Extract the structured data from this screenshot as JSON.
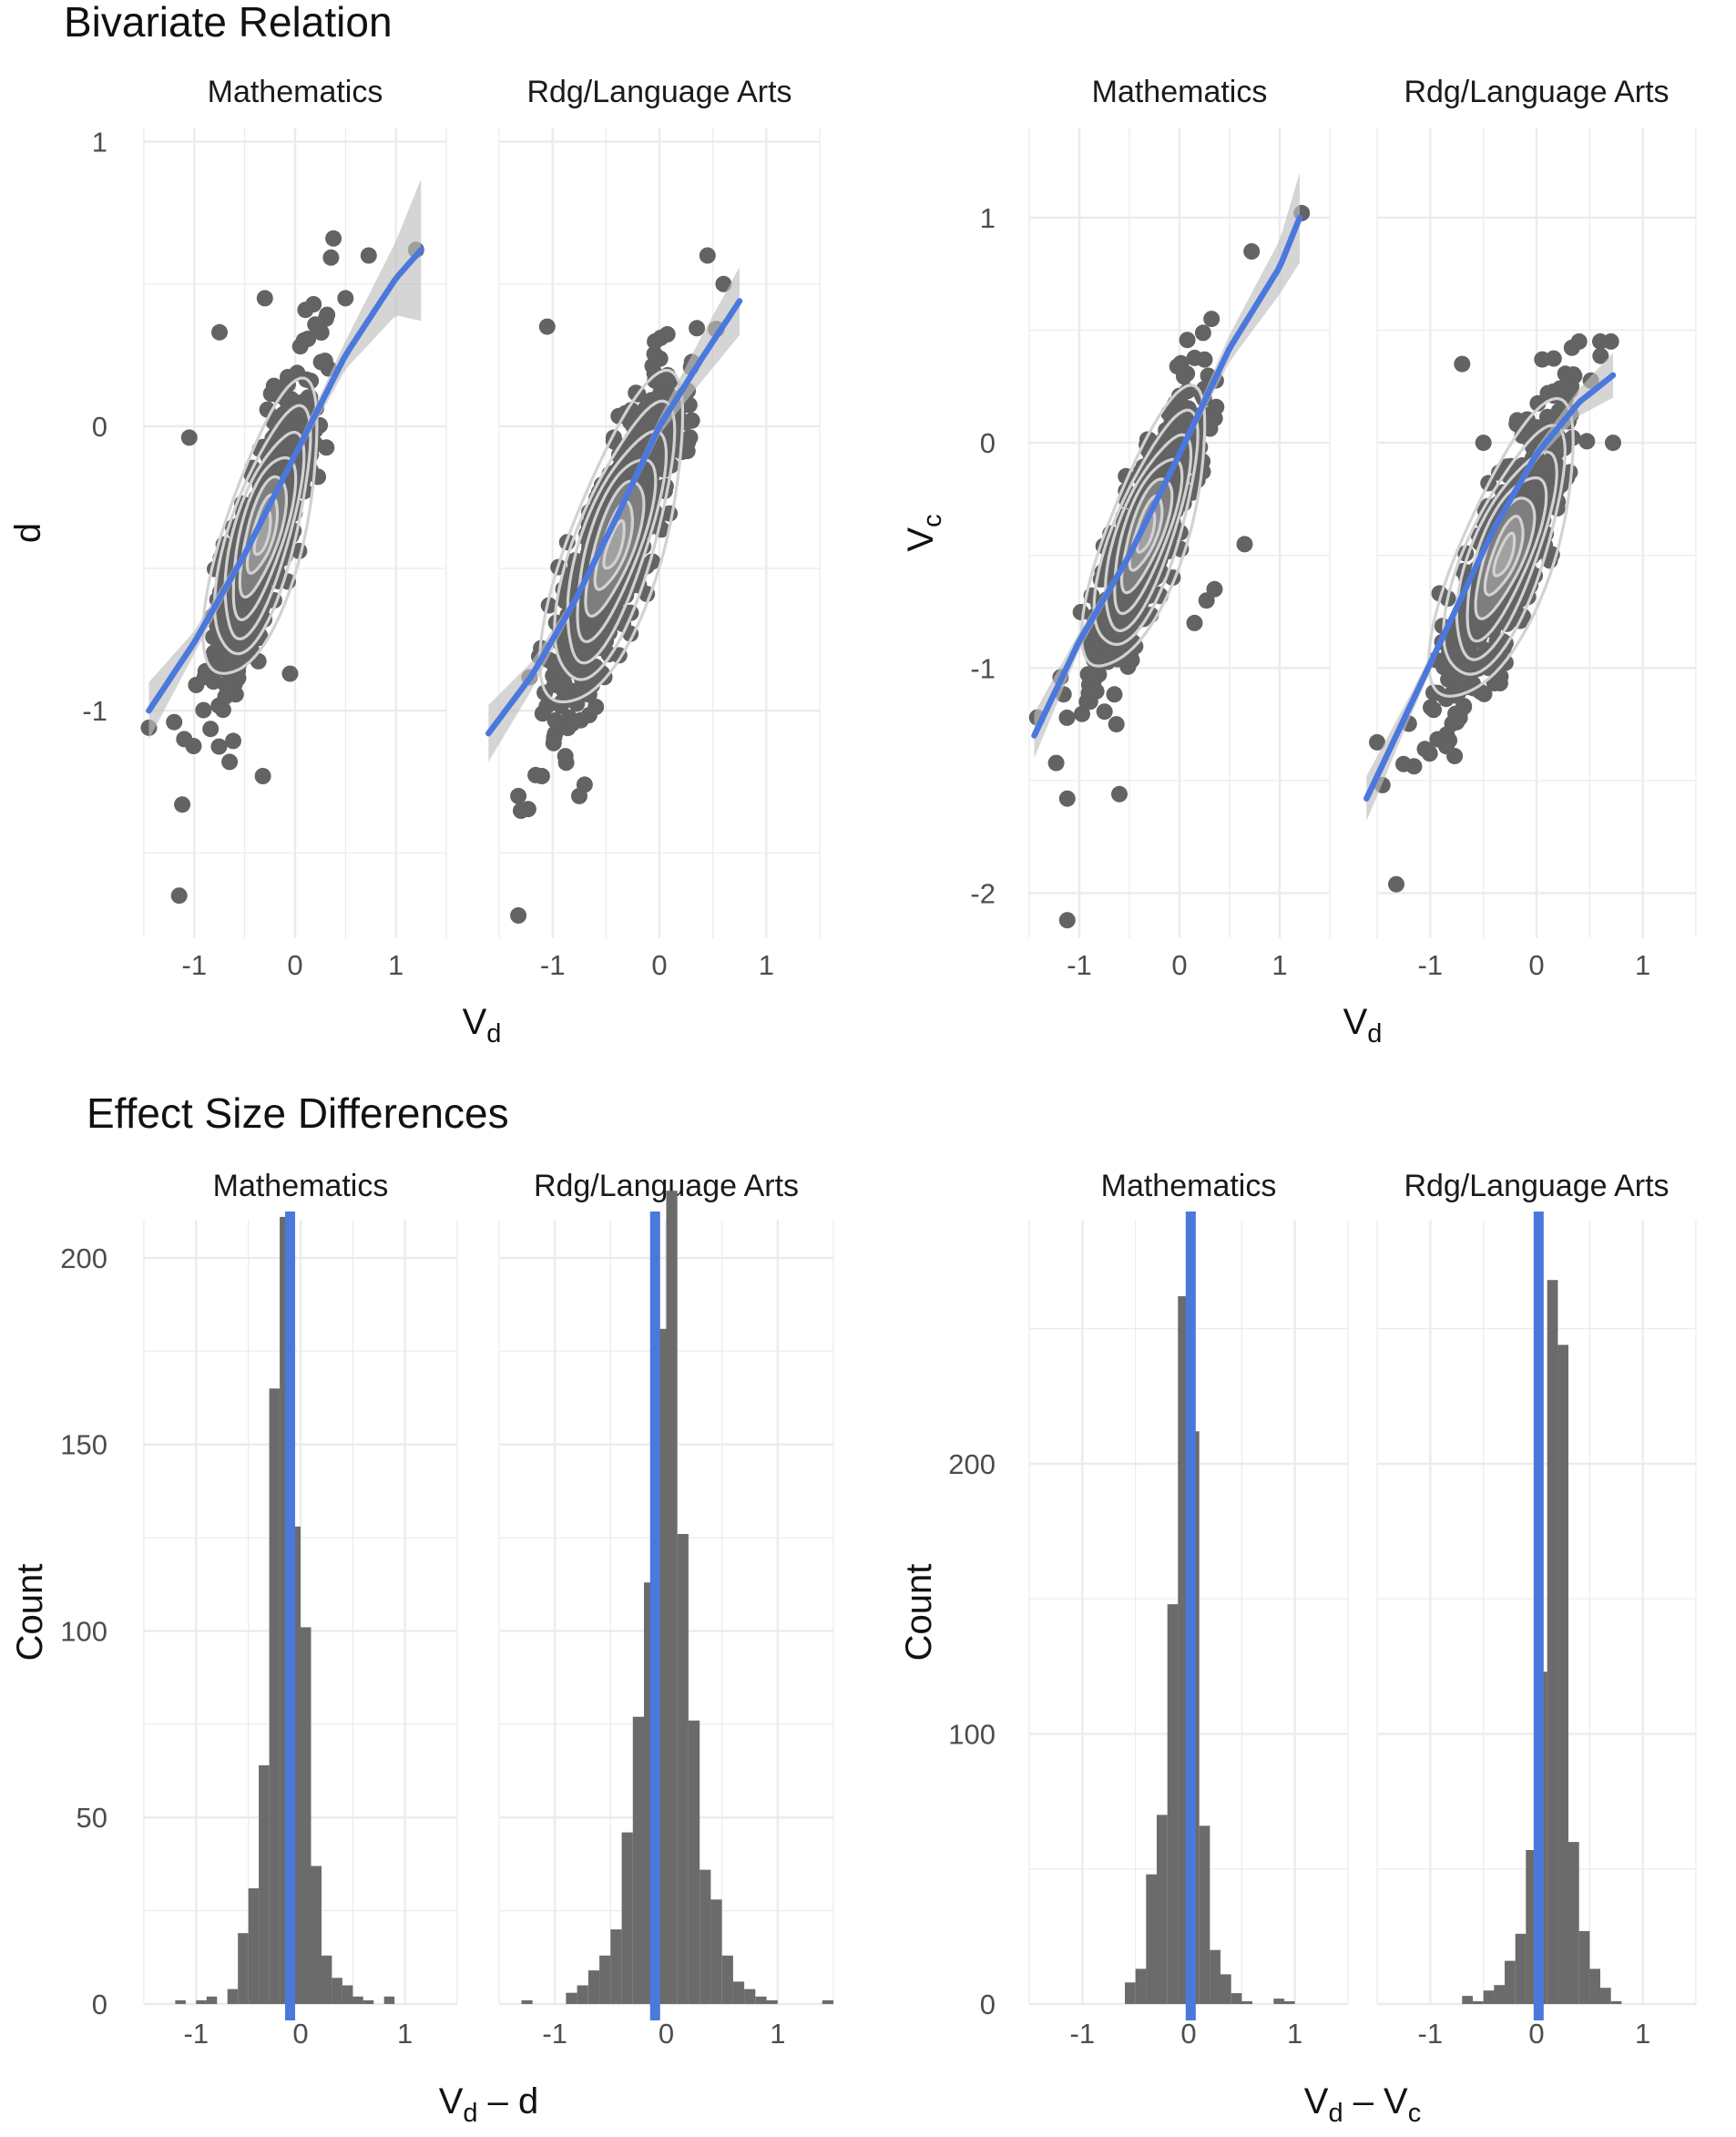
{
  "section_titles": {
    "top": "Bivariate Relation",
    "bottom": "Effect Size Differences"
  },
  "colors": {
    "points": "#636363",
    "smooth_line": "#4A78DC",
    "ribbon": "#BFBFBF",
    "density_contour": "#D2D2D2",
    "grid": "#EBEBEB",
    "bars": "#6B6B6B",
    "vline": "#4A78DC"
  },
  "chart_data": [
    {
      "id": "scatter-d",
      "type": "scatter",
      "overlays": [
        "loess smooth with confidence ribbon",
        "2d density contours"
      ],
      "xlabel": "V",
      "xlabel_sub": "d",
      "ylabel": "d",
      "ylabel_sub": "",
      "xlim": [
        -1.5,
        1.5
      ],
      "ylim": [
        -1.8,
        1.05
      ],
      "xticks": [
        -1,
        0,
        1
      ],
      "yticks": [
        -1,
        0,
        1
      ],
      "xticklabels": [
        "-1",
        "0",
        "1"
      ],
      "yticklabels": [
        "-1",
        "0",
        "1"
      ],
      "grid": true,
      "panels": [
        {
          "name": "Mathematics",
          "cloud": {
            "x_mean": -0.32,
            "x_sd": 0.25,
            "y_mean": -0.38,
            "y_sd": 0.27,
            "r": 0.82
          },
          "smooth": [
            [
              -1.45,
              -1.0
            ],
            [
              -1.0,
              -0.76
            ],
            [
              -0.5,
              -0.45
            ],
            [
              0.0,
              -0.1
            ],
            [
              0.5,
              0.25
            ],
            [
              1.0,
              0.52
            ],
            [
              1.25,
              0.62
            ]
          ],
          "ribbon_halfwidth": [
            0.1,
            0.04,
            0.02,
            0.02,
            0.05,
            0.13,
            0.25
          ],
          "outliers": [
            [
              -1.15,
              -1.65
            ],
            [
              -1.12,
              -1.33
            ],
            [
              -0.32,
              -1.23
            ],
            [
              -0.65,
              -1.18
            ],
            [
              -1.45,
              -1.06
            ],
            [
              -1.2,
              -1.04
            ],
            [
              -1.1,
              -1.1
            ],
            [
              0.38,
              0.66
            ],
            [
              0.5,
              0.45
            ],
            [
              0.73,
              0.6
            ],
            [
              1.2,
              0.62
            ],
            [
              -0.75,
              0.33
            ],
            [
              -1.05,
              -0.04
            ],
            [
              -0.05,
              -0.87
            ],
            [
              -0.3,
              0.45
            ]
          ]
        },
        {
          "name": "Rdg/Language Arts",
          "cloud": {
            "x_mean": -0.42,
            "x_sd": 0.3,
            "y_mean": -0.42,
            "y_sd": 0.3,
            "r": 0.83
          },
          "smooth": [
            [
              -1.6,
              -1.08
            ],
            [
              -1.2,
              -0.88
            ],
            [
              -0.8,
              -0.62
            ],
            [
              -0.4,
              -0.32
            ],
            [
              0.0,
              0.0
            ],
            [
              0.4,
              0.24
            ],
            [
              0.75,
              0.44
            ]
          ],
          "ribbon_halfwidth": [
            0.1,
            0.05,
            0.02,
            0.02,
            0.03,
            0.08,
            0.12
          ],
          "outliers": [
            [
              -1.32,
              -1.72
            ],
            [
              -1.6,
              -1.31
            ],
            [
              -1.32,
              -1.3
            ],
            [
              -0.75,
              -1.3
            ],
            [
              -0.7,
              -1.26
            ],
            [
              -1.1,
              -1.23
            ],
            [
              -1.58,
              -0.52
            ],
            [
              0.45,
              0.6
            ],
            [
              0.6,
              0.5
            ],
            [
              -0.88,
              -1.16
            ],
            [
              -0.35,
              -0.6
            ],
            [
              -1.05,
              0.35
            ]
          ]
        }
      ]
    },
    {
      "id": "scatter-vc",
      "type": "scatter",
      "overlays": [
        "loess smooth with confidence ribbon",
        "2d density contours"
      ],
      "xlabel": "V",
      "xlabel_sub": "d",
      "ylabel": "V",
      "ylabel_sub": "c",
      "xlim": [
        -1.5,
        1.5
      ],
      "ylim": [
        -2.2,
        1.4
      ],
      "xticks": [
        -1,
        0,
        1
      ],
      "yticks": [
        -2,
        -1,
        0,
        1
      ],
      "xticklabels": [
        "-1",
        "0",
        "1"
      ],
      "yticklabels": [
        "-2",
        "-1",
        "0",
        "1"
      ],
      "grid": true,
      "panels": [
        {
          "name": "Mathematics",
          "cloud": {
            "x_mean": -0.33,
            "x_sd": 0.27,
            "y_mean": -0.4,
            "y_sd": 0.32,
            "r": 0.86
          },
          "smooth": [
            [
              -1.45,
              -1.3
            ],
            [
              -1.0,
              -0.88
            ],
            [
              -0.5,
              -0.5
            ],
            [
              0.0,
              -0.05
            ],
            [
              0.5,
              0.42
            ],
            [
              1.0,
              0.78
            ],
            [
              1.2,
              1.0
            ]
          ],
          "ribbon_halfwidth": [
            0.1,
            0.04,
            0.02,
            0.02,
            0.06,
            0.12,
            0.2
          ],
          "outliers": [
            [
              -1.12,
              -2.12
            ],
            [
              -1.12,
              -1.58
            ],
            [
              -0.6,
              -1.56
            ],
            [
              -0.63,
              -1.25
            ],
            [
              -1.42,
              -1.22
            ],
            [
              1.22,
              1.02
            ],
            [
              0.72,
              0.85
            ],
            [
              0.32,
              0.55
            ],
            [
              0.65,
              -0.45
            ],
            [
              0.35,
              -0.65
            ],
            [
              0.27,
              -0.7
            ],
            [
              0.15,
              -0.8
            ]
          ]
        },
        {
          "name": "Rdg/Language Arts",
          "cloud": {
            "x_mean": -0.3,
            "x_sd": 0.3,
            "y_mean": -0.5,
            "y_sd": 0.34,
            "r": 0.85
          },
          "smooth": [
            [
              -1.6,
              -1.58
            ],
            [
              -1.2,
              -1.18
            ],
            [
              -0.8,
              -0.78
            ],
            [
              -0.4,
              -0.38
            ],
            [
              0.0,
              -0.05
            ],
            [
              0.4,
              0.18
            ],
            [
              0.72,
              0.3
            ]
          ],
          "ribbon_halfwidth": [
            0.1,
            0.05,
            0.02,
            0.02,
            0.03,
            0.06,
            0.1
          ],
          "outliers": [
            [
              -1.32,
              -1.96
            ],
            [
              -1.6,
              -1.33
            ],
            [
              -1.5,
              -1.33
            ],
            [
              -1.05,
              -1.36
            ],
            [
              -1.45,
              -1.52
            ],
            [
              0.7,
              0.45
            ],
            [
              0.72,
              0.0
            ],
            [
              0.6,
              0.45
            ],
            [
              0.4,
              0.45
            ],
            [
              -0.7,
              0.35
            ],
            [
              -0.5,
              0.0
            ]
          ]
        }
      ]
    },
    {
      "id": "hist-vd-d",
      "type": "bar",
      "overlays": [
        "vertical reference line"
      ],
      "xlabel": "V",
      "xlabel_sub": "d",
      "xlabel_tail": " – d",
      "xlabel_tail_sub": "",
      "ylabel": "Count",
      "xlim": [
        -1.5,
        1.5
      ],
      "ylim": [
        0,
        210
      ],
      "xticks": [
        -1,
        0,
        1
      ],
      "yticks": [
        0,
        50,
        100,
        150,
        200
      ],
      "xticklabels": [
        "-1",
        "0",
        "1"
      ],
      "yticklabels": [
        "0",
        "50",
        "100",
        "150",
        "200"
      ],
      "grid": true,
      "bin_width": 0.1,
      "panels": [
        {
          "name": "Mathematics",
          "bins_start": -1.2,
          "counts": [
            1,
            0,
            1,
            2,
            0,
            4,
            19,
            31,
            64,
            165,
            211,
            128,
            101,
            37,
            13,
            7,
            5,
            2,
            1,
            0,
            2
          ],
          "vline": -0.1
        },
        {
          "name": "Rdg/Language Arts",
          "bins_start": -1.3,
          "counts": [
            1,
            0,
            0,
            0,
            3,
            5,
            9,
            13,
            20,
            46,
            77,
            113,
            181,
            218,
            126,
            76,
            36,
            28,
            13,
            6,
            4,
            2,
            1,
            0,
            0,
            0,
            0,
            1
          ],
          "vline": -0.1
        }
      ]
    },
    {
      "id": "hist-vd-vc",
      "type": "bar",
      "overlays": [
        "vertical reference line"
      ],
      "xlabel": "V",
      "xlabel_sub": "d",
      "xlabel_tail": " – V",
      "xlabel_tail_sub": "c",
      "ylabel": "Count",
      "xlim": [
        -1.5,
        1.5
      ],
      "ylim": [
        0,
        290
      ],
      "xticks": [
        -1,
        0,
        1
      ],
      "yticks": [
        0,
        100,
        200
      ],
      "xticklabels": [
        "-1",
        "0",
        "1"
      ],
      "yticklabels": [
        "0",
        "100",
        "200"
      ],
      "grid": true,
      "bin_width": 0.1,
      "panels": [
        {
          "name": "Mathematics",
          "bins_start": -0.6,
          "counts": [
            8,
            13,
            48,
            70,
            148,
            262,
            212,
            66,
            20,
            11,
            4,
            1,
            0,
            0,
            2,
            1
          ],
          "vline": 0.02
        },
        {
          "name": "Rdg/Language Arts",
          "bins_start": -0.7,
          "counts": [
            3,
            1,
            5,
            7,
            16,
            26,
            57,
            123,
            268,
            244,
            60,
            27,
            13,
            6,
            1
          ],
          "vline": 0.02
        }
      ]
    }
  ]
}
